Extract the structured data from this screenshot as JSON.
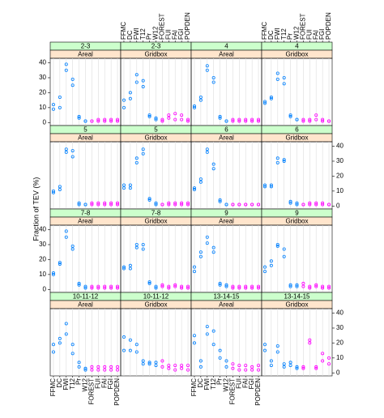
{
  "chart_data": {
    "type": "dotplot",
    "ylabel": "Fraction of TEV (%)",
    "categories": [
      "FFMC",
      "DC",
      "FWI",
      "T12",
      "Pr",
      "W12",
      "FOREST",
      "FUI",
      "FAI",
      "FGI",
      "POPDEN"
    ],
    "colors": [
      "#0080ff",
      "#0080ff",
      "#0080ff",
      "#0080ff",
      "#0080ff",
      "#0080ff",
      "#ff00ff",
      "#ff00ff",
      "#ff00ff",
      "#ff00ff",
      "#ff00ff"
    ],
    "ylim": [
      -2,
      43
    ],
    "yticks": [
      0,
      10,
      20,
      30,
      40
    ],
    "panels": [
      {
        "period": "2-3",
        "source": "Areal",
        "values": [
          [
            9,
            12
          ],
          [
            10,
            17
          ],
          [
            35,
            39
          ],
          [
            25,
            29
          ],
          [
            3,
            4
          ],
          [
            1,
            1
          ],
          [
            1,
            1
          ],
          [
            1,
            2
          ],
          [
            1,
            2
          ],
          [
            1,
            2
          ],
          [
            1,
            2
          ]
        ]
      },
      {
        "period": "2-3",
        "source": "Gridbox",
        "values": [
          [
            10,
            15
          ],
          [
            16,
            20
          ],
          [
            27,
            32
          ],
          [
            24,
            28
          ],
          [
            4,
            5
          ],
          [
            2,
            3
          ],
          [
            1,
            2
          ],
          [
            3,
            5
          ],
          [
            2,
            6
          ],
          [
            2,
            5
          ],
          [
            1,
            2
          ]
        ]
      },
      {
        "period": "4",
        "source": "Areal",
        "values": [
          [
            10,
            11
          ],
          [
            15,
            17
          ],
          [
            35,
            38
          ],
          [
            27,
            30
          ],
          [
            3,
            4
          ],
          [
            1,
            1
          ],
          [
            1,
            2
          ],
          [
            1,
            2
          ],
          [
            1,
            2
          ],
          [
            1,
            2
          ],
          [
            1,
            2
          ]
        ]
      },
      {
        "period": "4",
        "source": "Gridbox",
        "values": [
          [
            13,
            14
          ],
          [
            16,
            17
          ],
          [
            29,
            33
          ],
          [
            26,
            30
          ],
          [
            4,
            5
          ],
          [
            2,
            2
          ],
          [
            1,
            2
          ],
          [
            1,
            2
          ],
          [
            2,
            5
          ],
          [
            1,
            2
          ],
          [
            1,
            1
          ]
        ]
      },
      {
        "period": "5",
        "source": "Areal",
        "values": [
          [
            9,
            10
          ],
          [
            11,
            13
          ],
          [
            36,
            38
          ],
          [
            33,
            37
          ],
          [
            1,
            2
          ],
          [
            1,
            1
          ],
          [
            1,
            2
          ],
          [
            1,
            2
          ],
          [
            1,
            2
          ],
          [
            1,
            2
          ],
          [
            1,
            2
          ]
        ]
      },
      {
        "period": "5",
        "source": "Gridbox",
        "values": [
          [
            12,
            14
          ],
          [
            12,
            14
          ],
          [
            29,
            32
          ],
          [
            35,
            38
          ],
          [
            4,
            5
          ],
          [
            1,
            2
          ],
          [
            1,
            1
          ],
          [
            1,
            2
          ],
          [
            1,
            2
          ],
          [
            1,
            2
          ],
          [
            1,
            2
          ]
        ]
      },
      {
        "period": "6",
        "source": "Areal",
        "values": [
          [
            11,
            12
          ],
          [
            16,
            18
          ],
          [
            36,
            38
          ],
          [
            25,
            28
          ],
          [
            3,
            4
          ],
          [
            1,
            1
          ],
          [
            1,
            1
          ],
          [
            1,
            1
          ],
          [
            1,
            1
          ],
          [
            1,
            1
          ],
          [
            1,
            1
          ]
        ]
      },
      {
        "period": "6",
        "source": "Gridbox",
        "values": [
          [
            13,
            14
          ],
          [
            13,
            14
          ],
          [
            29,
            32
          ],
          [
            30,
            31
          ],
          [
            2,
            3
          ],
          [
            1,
            2
          ],
          [
            1,
            1
          ],
          [
            1,
            2
          ],
          [
            1,
            2
          ],
          [
            1,
            2
          ],
          [
            1,
            1
          ]
        ]
      },
      {
        "period": "7-8",
        "source": "Areal",
        "values": [
          [
            10,
            11
          ],
          [
            17,
            18
          ],
          [
            35,
            39
          ],
          [
            27,
            29
          ],
          [
            3,
            4
          ],
          [
            1,
            2
          ],
          [
            1,
            2
          ],
          [
            1,
            2
          ],
          [
            1,
            2
          ],
          [
            1,
            2
          ],
          [
            1,
            2
          ]
        ]
      },
      {
        "period": "7-8",
        "source": "Gridbox",
        "values": [
          [
            14,
            15
          ],
          [
            14,
            16
          ],
          [
            28,
            30
          ],
          [
            27,
            30
          ],
          [
            4,
            5
          ],
          [
            1,
            2
          ],
          [
            2,
            3
          ],
          [
            1,
            2
          ],
          [
            2,
            3
          ],
          [
            1,
            2
          ],
          [
            1,
            2
          ]
        ]
      },
      {
        "period": "9",
        "source": "Areal",
        "values": [
          [
            12,
            15
          ],
          [
            22,
            25
          ],
          [
            31,
            35
          ],
          [
            25,
            28
          ],
          [
            3,
            4
          ],
          [
            2,
            3
          ],
          [
            1,
            2
          ],
          [
            1,
            2
          ],
          [
            1,
            2
          ],
          [
            1,
            2
          ],
          [
            1,
            2
          ]
        ]
      },
      {
        "period": "9",
        "source": "Gridbox",
        "values": [
          [
            12,
            15
          ],
          [
            16,
            19
          ],
          [
            29,
            30
          ],
          [
            22,
            27
          ],
          [
            2,
            3
          ],
          [
            2,
            3
          ],
          [
            2,
            4
          ],
          [
            1,
            2
          ],
          [
            2,
            3
          ],
          [
            1,
            2
          ],
          [
            1,
            2
          ]
        ]
      },
      {
        "period": "10-11-12",
        "source": "Areal",
        "values": [
          [
            14,
            19
          ],
          [
            20,
            23
          ],
          [
            26,
            33
          ],
          [
            13,
            19
          ],
          [
            4,
            7
          ],
          [
            2,
            3
          ],
          [
            2,
            4
          ],
          [
            2,
            4
          ],
          [
            2,
            4
          ],
          [
            2,
            4
          ],
          [
            2,
            4
          ]
        ]
      },
      {
        "period": "10-11-12",
        "source": "Gridbox",
        "values": [
          [
            15,
            24
          ],
          [
            15,
            22
          ],
          [
            14,
            19
          ],
          [
            6,
            8
          ],
          [
            6,
            7
          ],
          [
            5,
            7
          ],
          [
            4,
            8
          ],
          [
            3,
            5
          ],
          [
            2,
            5
          ],
          [
            3,
            5
          ],
          [
            2,
            5
          ]
        ]
      },
      {
        "period": "13-14-15",
        "source": "Areal",
        "values": [
          [
            20,
            25
          ],
          [
            4,
            8
          ],
          [
            26,
            31
          ],
          [
            19,
            28
          ],
          [
            10,
            15
          ],
          [
            4,
            8
          ],
          [
            3,
            6
          ],
          [
            2,
            5
          ],
          [
            2,
            5
          ],
          [
            2,
            4
          ],
          [
            2,
            5
          ]
        ]
      },
      {
        "period": "13-14-15",
        "source": "Gridbox",
        "values": [
          [
            15,
            19
          ],
          [
            5,
            8
          ],
          [
            14,
            18
          ],
          [
            4,
            6
          ],
          [
            5,
            7
          ],
          [
            3,
            4
          ],
          [
            3,
            4
          ],
          [
            20,
            22
          ],
          [
            3,
            4
          ],
          [
            8,
            13
          ],
          [
            6,
            10
          ]
        ]
      }
    ]
  }
}
